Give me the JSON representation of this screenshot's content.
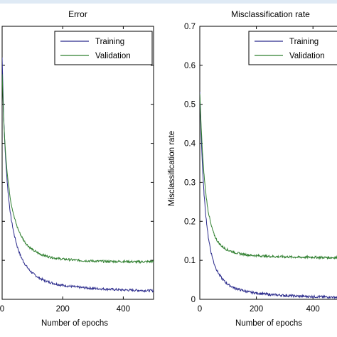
{
  "chart_data": [
    {
      "type": "line",
      "title": "Error",
      "xlabel": "Number of epochs",
      "ylabel": "",
      "xlim": [
        0,
        500
      ],
      "ylim": [
        0,
        0.7
      ],
      "xticks": [
        "0",
        "200",
        "400"
      ],
      "yticks": [
        "",
        "",
        "",
        "",
        "",
        "",
        "",
        ""
      ],
      "grid": false,
      "legend_position": "top-right",
      "series": [
        {
          "name": "Training",
          "color": "#2b2b8c",
          "x": [
            0,
            5,
            10,
            15,
            20,
            25,
            30,
            40,
            50,
            60,
            70,
            80,
            90,
            100,
            120,
            140,
            160,
            180,
            200,
            250,
            300,
            350,
            400,
            450,
            500
          ],
          "y": [
            0.62,
            0.47,
            0.38,
            0.32,
            0.27,
            0.235,
            0.205,
            0.165,
            0.135,
            0.113,
            0.097,
            0.085,
            0.075,
            0.067,
            0.056,
            0.048,
            0.043,
            0.039,
            0.036,
            0.031,
            0.028,
            0.026,
            0.024,
            0.023,
            0.022
          ]
        },
        {
          "name": "Validation",
          "color": "#2f7f2f",
          "x": [
            0,
            5,
            10,
            15,
            20,
            25,
            30,
            40,
            50,
            60,
            70,
            80,
            90,
            100,
            120,
            140,
            160,
            180,
            200,
            250,
            300,
            350,
            400,
            450,
            500
          ],
          "y": [
            0.58,
            0.46,
            0.39,
            0.34,
            0.3,
            0.27,
            0.245,
            0.21,
            0.185,
            0.167,
            0.153,
            0.142,
            0.134,
            0.127,
            0.118,
            0.112,
            0.108,
            0.105,
            0.103,
            0.1,
            0.098,
            0.097,
            0.097,
            0.096,
            0.097
          ]
        }
      ]
    },
    {
      "type": "line",
      "title": "Misclassification rate",
      "xlabel": "Number of epochs",
      "ylabel": "Misclassification rate",
      "xlim": [
        0,
        500
      ],
      "ylim": [
        0,
        0.7
      ],
      "xticks": [
        "0",
        "200",
        "400"
      ],
      "yticks": [
        "0",
        "0.1",
        "0.2",
        "0.3",
        "0.4",
        "0.5",
        "0.6",
        "0.7"
      ],
      "grid": false,
      "legend_position": "top-right",
      "series": [
        {
          "name": "Training",
          "color": "#2b2b8c",
          "x": [
            0,
            5,
            10,
            15,
            20,
            25,
            30,
            40,
            50,
            60,
            70,
            80,
            90,
            100,
            120,
            140,
            160,
            180,
            200,
            250,
            300,
            350,
            400,
            450,
            500
          ],
          "y": [
            0.53,
            0.42,
            0.33,
            0.27,
            0.225,
            0.19,
            0.16,
            0.12,
            0.093,
            0.075,
            0.062,
            0.052,
            0.044,
            0.038,
            0.03,
            0.025,
            0.021,
            0.018,
            0.016,
            0.012,
            0.01,
            0.008,
            0.007,
            0.006,
            0.005
          ]
        },
        {
          "name": "Validation",
          "color": "#2f7f2f",
          "x": [
            0,
            5,
            10,
            15,
            20,
            25,
            30,
            40,
            50,
            60,
            70,
            80,
            90,
            100,
            120,
            140,
            160,
            180,
            200,
            250,
            300,
            350,
            400,
            450,
            500
          ],
          "y": [
            0.53,
            0.44,
            0.37,
            0.32,
            0.28,
            0.25,
            0.225,
            0.19,
            0.167,
            0.152,
            0.142,
            0.135,
            0.13,
            0.126,
            0.121,
            0.117,
            0.115,
            0.113,
            0.112,
            0.11,
            0.109,
            0.108,
            0.108,
            0.107,
            0.107
          ]
        }
      ]
    }
  ]
}
